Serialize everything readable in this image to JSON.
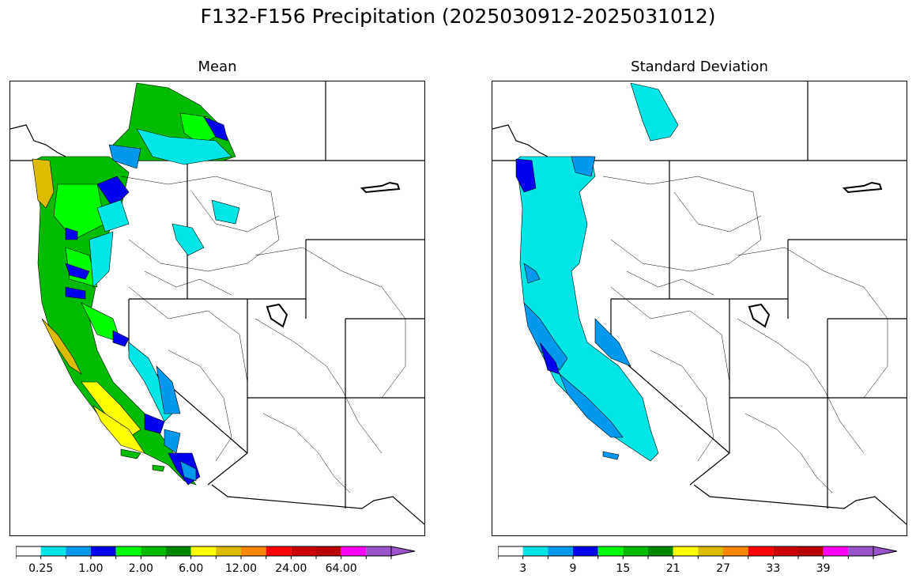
{
  "figure": {
    "title": "F132-F156 Precipitation (2025030912-2025031012)"
  },
  "panels": [
    {
      "title": "Mean",
      "colorbar": {
        "colors": [
          "#ffffff",
          "#00e5e5",
          "#0099ee",
          "#0000ee",
          "#00ff00",
          "#00bb00",
          "#008800",
          "#ffff00",
          "#ddbb00",
          "#ff8800",
          "#ff0000",
          "#cc0000",
          "#bb0000",
          "#ff00ff",
          "#9955cc"
        ],
        "tick_labels": [
          "0.25",
          "1.00",
          "2.00",
          "6.00",
          "12.00",
          "24.00",
          "64.00"
        ]
      }
    },
    {
      "title": "Standard Deviation",
      "colorbar": {
        "colors": [
          "#ffffff",
          "#00e5e5",
          "#0099ee",
          "#0000ee",
          "#00ff00",
          "#00bb00",
          "#008800",
          "#ffff00",
          "#ddbb00",
          "#ff8800",
          "#ff0000",
          "#cc0000",
          "#bb0000",
          "#ff00ff",
          "#9955cc"
        ],
        "tick_labels": [
          "3",
          "9",
          "15",
          "21",
          "27",
          "33",
          "39"
        ]
      }
    }
  ]
}
